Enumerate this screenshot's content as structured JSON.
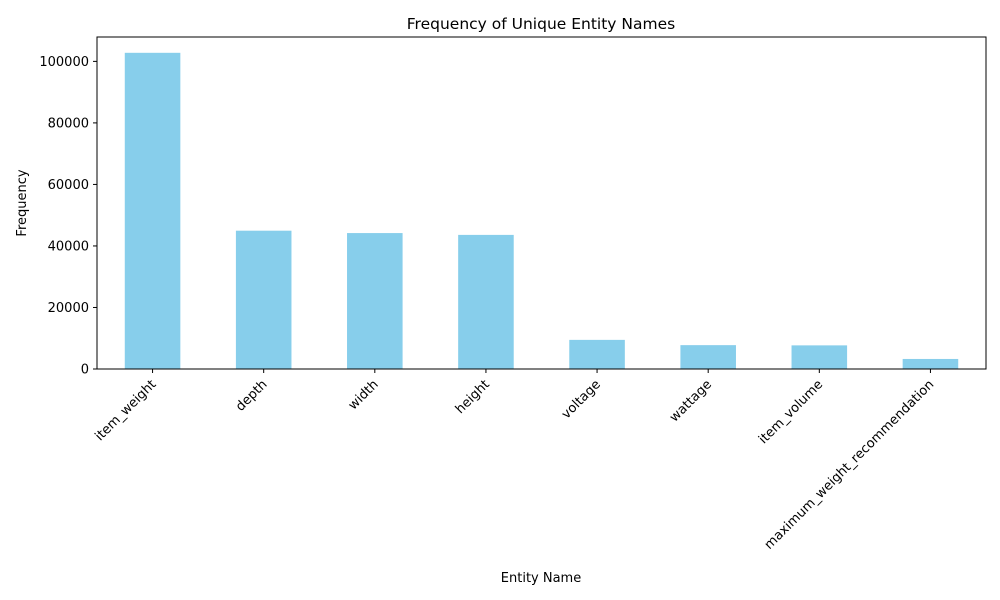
{
  "colors": {
    "bar": "#87ceeb",
    "axis": "#000000",
    "background": "#ffffff"
  },
  "chart_data": {
    "type": "bar",
    "title": "Frequency of Unique Entity Names",
    "xlabel": "Entity Name",
    "ylabel": "Frequency",
    "categories": [
      "item_weight",
      "depth",
      "width",
      "height",
      "voltage",
      "wattage",
      "item_volume",
      "maximum_weight_recommendation"
    ],
    "values": [
      102786,
      44960,
      44189,
      43596,
      9466,
      7755,
      7682,
      3263
    ],
    "ylim": [
      0,
      107925
    ],
    "yticks": [
      0,
      20000,
      40000,
      60000,
      80000,
      100000
    ],
    "ytick_labels": [
      "0",
      "20000",
      "40000",
      "60000",
      "80000",
      "100000"
    ],
    "grid": false,
    "legend": "none",
    "xtick_rotation": 45
  }
}
